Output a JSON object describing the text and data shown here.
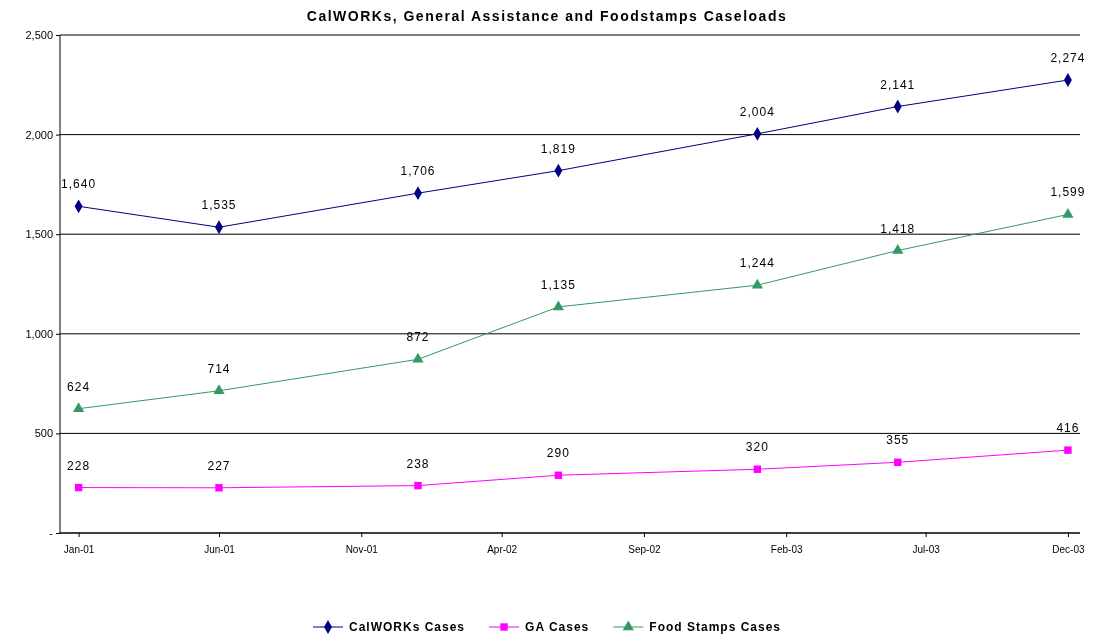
{
  "chart_data": {
    "type": "line",
    "title": "CalWORKs, General Assistance and Foodstamps Caseloads",
    "x": [
      "2001-01",
      "2001-06",
      "2002-01",
      "2002-06",
      "2003-01",
      "2003-06",
      "2003-12"
    ],
    "series": [
      {
        "name": "CalWORKs Cases",
        "color": "#000080",
        "marker": "diamond",
        "values": [
          1640,
          1535,
          1706,
          1819,
          2004,
          2141,
          2274
        ],
        "value_labels": [
          "1,640",
          "1,535",
          "1,706",
          "1,819",
          "2,004",
          "2,141",
          "2,274"
        ]
      },
      {
        "name": "GA Cases",
        "color": "#ff00ff",
        "marker": "square",
        "values": [
          228,
          227,
          238,
          290,
          320,
          355,
          416
        ],
        "value_labels": [
          "228",
          "227",
          "238",
          "290",
          "320",
          "355",
          "416"
        ]
      },
      {
        "name": "Food Stamps Cases",
        "color": "#339966",
        "marker": "triangle",
        "values": [
          624,
          714,
          872,
          1135,
          1244,
          1418,
          1599
        ],
        "value_labels": [
          "624",
          "714",
          "872",
          "1,135",
          "1,244",
          "1,418",
          "1,599"
        ]
      }
    ],
    "xlim": [
      "2000-12-12",
      "2003-12-14"
    ],
    "xticks": [
      {
        "value": "2001-01",
        "label": "Jan-01"
      },
      {
        "value": "2001-06",
        "label": "Jun-01"
      },
      {
        "value": "2001-11",
        "label": "Nov-01"
      },
      {
        "value": "2002-04",
        "label": "Apr-02"
      },
      {
        "value": "2002-09",
        "label": "Sep-02"
      },
      {
        "value": "2003-02",
        "label": "Feb-03"
      },
      {
        "value": "2003-07",
        "label": "Jul-03"
      },
      {
        "value": "2003-12",
        "label": "Dec-03"
      }
    ],
    "ylim": [
      0,
      2500
    ],
    "yticks": [
      {
        "value": 0,
        "label": "-"
      },
      {
        "value": 500,
        "label": "500"
      },
      {
        "value": 1000,
        "label": "1,000"
      },
      {
        "value": 1500,
        "label": "1,500"
      },
      {
        "value": 2000,
        "label": "2,000"
      },
      {
        "value": 2500,
        "label": "2,500"
      }
    ],
    "grid": "y",
    "legend": "bottom",
    "line_style": "solid"
  }
}
